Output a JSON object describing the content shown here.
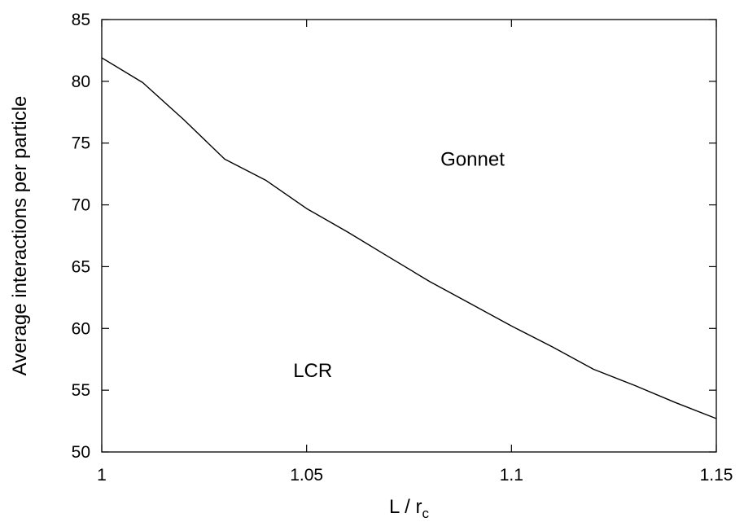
{
  "chart_data": {
    "type": "line",
    "xlabel": "L / r",
    "xlabel_sub": "c",
    "ylabel": "Average interactions per particle",
    "xlim": [
      1,
      1.15
    ],
    "ylim": [
      50,
      85
    ],
    "x_ticks": [
      1,
      1.05,
      1.1,
      1.15
    ],
    "x_tick_labels": [
      "1",
      "1.05",
      "1.1",
      "1.15"
    ],
    "y_ticks": [
      50,
      55,
      60,
      65,
      70,
      75,
      80,
      85
    ],
    "y_tick_labels": [
      "50",
      "55",
      "60",
      "65",
      "70",
      "75",
      "80",
      "85"
    ],
    "grid": false,
    "series": [
      {
        "x": [
          1.0,
          1.01,
          1.02,
          1.03,
          1.04,
          1.05,
          1.06,
          1.07,
          1.08,
          1.09,
          1.1,
          1.11,
          1.12,
          1.13,
          1.14,
          1.15
        ],
        "values": [
          81.9,
          79.9,
          76.9,
          73.7,
          72.0,
          69.7,
          67.8,
          65.8,
          63.8,
          62.0,
          60.2,
          58.5,
          56.7,
          55.4,
          54.0,
          52.7
        ],
        "color": "#000000"
      }
    ],
    "annotations": [
      {
        "text": "Gonnet",
        "x": 1.0905,
        "y": 73.7
      },
      {
        "text": "LCR",
        "x": 1.0515,
        "y": 56.6
      }
    ]
  }
}
